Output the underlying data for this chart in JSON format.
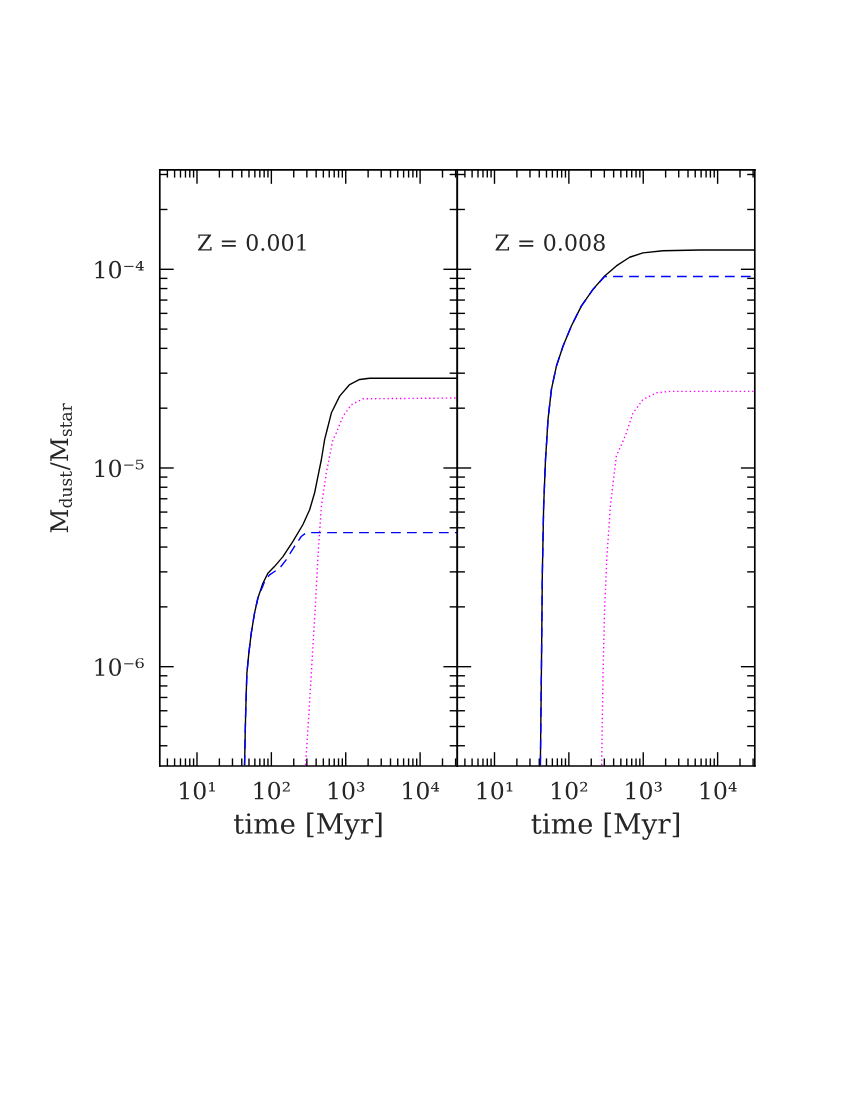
{
  "chart_data": [
    {
      "type": "line",
      "log": "xy",
      "xlabel": "time [Myr]",
      "ylabel": "M$_{dust}$/M$_{star}$",
      "annotations": [
        "Z = 0.001"
      ],
      "xlim": [
        3.162,
        31623
      ],
      "ylim": [
        3.162e-07,
        0.0003162
      ],
      "xticks": [
        {
          "value": 10,
          "label": "10¹"
        },
        {
          "value": 100,
          "label": "10²"
        },
        {
          "value": 1000,
          "label": "10³"
        },
        {
          "value": 10000,
          "label": "10⁴"
        }
      ],
      "yticks": [
        {
          "value": 1e-06,
          "label": "10⁻⁶"
        },
        {
          "value": 1e-05,
          "label": "10⁻⁵"
        },
        {
          "value": 0.0001,
          "label": "10⁻⁴"
        }
      ],
      "series": [
        {
          "color": "#000000",
          "line_style": "solid",
          "x": [
            43.6,
            45,
            46.8,
            49.8,
            53.6,
            59.4,
            65.8,
            76.9,
            89.8,
            110,
            143,
            195,
            265,
            327,
            381,
            423,
            470,
            520,
            548,
            640,
            828,
            1129,
            1540,
            2098,
            31623
          ],
          "values": [
            3.2e-07,
            5.6e-07,
            9.2e-07,
            1.17e-06,
            1.47e-06,
            1.86e-06,
            2.21e-06,
            2.63e-06,
            2.95e-06,
            3.19e-06,
            3.58e-06,
            4.27e-06,
            5.18e-06,
            6.16e-06,
            7.48e-06,
            9.08e-06,
            1.1e-05,
            1.39e-05,
            1.5e-05,
            1.89e-05,
            2.3e-05,
            2.63e-05,
            2.79e-05,
            2.83e-05,
            2.83e-05
          ]
        },
        {
          "color": "#0000ff",
          "line_style": "dashed",
          "x": [
            43.6,
            45,
            46.8,
            49.8,
            53.6,
            59.4,
            65.8,
            76.9,
            81,
            94.6,
            129,
            158,
            205,
            252,
            290,
            330,
            31623
          ],
          "values": [
            3.2e-07,
            5.6e-07,
            9.2e-07,
            1.17e-06,
            1.47e-06,
            1.86e-06,
            2.21e-06,
            2.55e-06,
            2.68e-06,
            2.9e-06,
            3.13e-06,
            3.45e-06,
            4.03e-06,
            4.52e-06,
            4.7e-06,
            4.73e-06,
            4.73e-06
          ]
        },
        {
          "color": "#ff00ff",
          "line_style": "dotted",
          "x": [
            288,
            320,
            355,
            390,
            423,
            470,
            548,
            673,
            746,
            917,
            1188,
            1706,
            31623
          ],
          "values": [
            3.2e-07,
            5.81e-07,
            1.12e-06,
            2e-06,
            3.58e-06,
            6.4e-06,
            9.44e-06,
            1.39e-05,
            1.5e-05,
            1.82e-05,
            2.08e-05,
            2.23e-05,
            2.25e-05
          ]
        }
      ]
    },
    {
      "type": "line",
      "log": "xy",
      "xlabel": "time [Myr]",
      "annotations": [
        "Z = 0.008"
      ],
      "tick_labels": "x",
      "xlim": [
        3.162,
        31623
      ],
      "ylim": [
        3.162e-07,
        0.0003162
      ],
      "xticks": [
        {
          "value": 10,
          "label": "10¹"
        },
        {
          "value": 100,
          "label": "10²"
        },
        {
          "value": 1000,
          "label": "10³"
        },
        {
          "value": 10000,
          "label": "10⁴"
        }
      ],
      "yticks": [
        1e-06,
        1e-05,
        0.0001
      ],
      "series": [
        {
          "color": "#000000",
          "line_style": "solid",
          "x": [
            41.4,
            42.7,
            44.0,
            45.8,
            48.5,
            50.5,
            52.4,
            58.2,
            67.9,
            83.4,
            108,
            147,
            211,
            303,
            435,
            656,
            991,
            1841,
            5730,
            31623
          ],
          "values": [
            3.2e-07,
            9.25e-07,
            2.95e-06,
            6.4e-06,
            1.1e-05,
            1.39e-05,
            1.75e-05,
            2.48e-05,
            3.25e-05,
            4.1e-05,
            5.18e-05,
            6.53e-05,
            7.92e-05,
            9.25e-05,
            0.000104,
            0.000115,
            0.000121,
            0.000124,
            0.000125,
            0.000125
          ]
        },
        {
          "color": "#0000ff",
          "line_style": "dashed",
          "x": [
            41.4,
            42.7,
            44.0,
            45.8,
            48.5,
            50.5,
            52.4,
            58.2,
            67.9,
            83.4,
            108,
            147,
            211,
            303,
            31623
          ],
          "values": [
            3.2e-07,
            9.25e-07,
            2.95e-06,
            6.4e-06,
            1.1e-05,
            1.39e-05,
            1.75e-05,
            2.48e-05,
            3.25e-05,
            4.1e-05,
            5.18e-05,
            6.53e-05,
            7.92e-05,
            9.2e-05,
            9.2e-05
          ]
        },
        {
          "color": "#ff00ff",
          "line_style": "dotted",
          "x": [
            276,
            288,
            303,
            325,
            361,
            435,
            546,
            593,
            728,
            991,
            1500,
            2265,
            31623
          ],
          "values": [
            3.2e-07,
            9.25e-07,
            2e-06,
            3.58e-06,
            6.4e-06,
            1.15e-05,
            1.39e-05,
            1.5e-05,
            1.89e-05,
            2.21e-05,
            2.39e-05,
            2.43e-05,
            2.43e-05
          ]
        }
      ]
    }
  ]
}
